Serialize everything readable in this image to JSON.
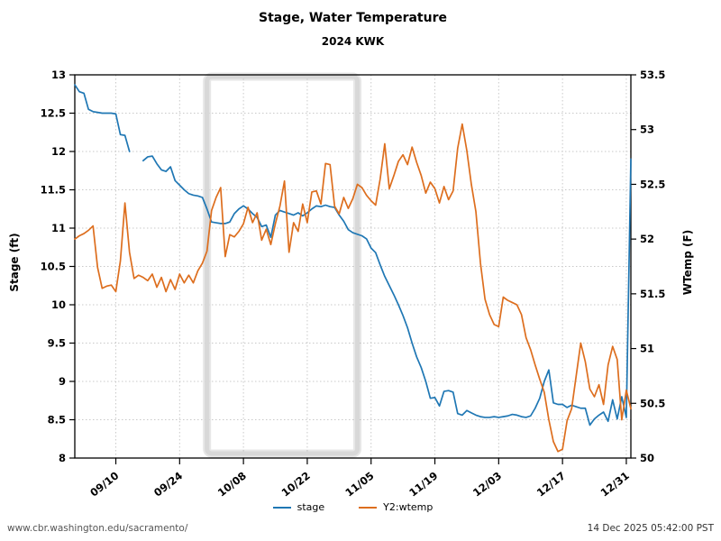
{
  "header": {
    "title": "Stage, Water Temperature",
    "subtitle": "2024 KWK"
  },
  "footer": {
    "source_url": "www.cbr.washington.edu/sacramento/",
    "timestamp": "14 Dec 2025 05:42:00 PST"
  },
  "legend": {
    "stage_label": "stage",
    "wtemp_label": "Y2:wtemp"
  },
  "colors": {
    "stage": "#1f77b4",
    "wtemp": "#dd6e1e",
    "grid": "#c9c9c9",
    "axis": "#000000",
    "selection": "#d8d8d8"
  },
  "chart_data": {
    "type": "line",
    "title": "Stage, Water Temperature",
    "subtitle": "2024 KWK",
    "grid": true,
    "legend": {
      "position": "bottom",
      "entries": [
        "stage",
        "Y2:wtemp"
      ]
    },
    "y_left": {
      "label": "Stage (ft)",
      "min": 8,
      "max": 13,
      "tick_step": 0.5
    },
    "y_right": {
      "label": "WTemp (F)",
      "min": 50,
      "max": 53.5,
      "tick_step": 0.5
    },
    "x_tick_labels": [
      "09/10",
      "09/24",
      "10/08",
      "10/22",
      "11/05",
      "11/19",
      "12/03",
      "12/17",
      "12/31"
    ],
    "selection_box": {
      "x_start_date": "09/30",
      "x_end_date": "11/02"
    },
    "dates": [
      "09/01",
      "09/02",
      "09/03",
      "09/04",
      "09/05",
      "09/06",
      "09/07",
      "09/08",
      "09/09",
      "09/10",
      "09/11",
      "09/12",
      "09/13",
      "09/14",
      "09/15",
      "09/16",
      "09/17",
      "09/18",
      "09/19",
      "09/20",
      "09/21",
      "09/22",
      "09/23",
      "09/24",
      "09/25",
      "09/26",
      "09/27",
      "09/28",
      "09/29",
      "09/30",
      "10/01",
      "10/02",
      "10/03",
      "10/04",
      "10/05",
      "10/06",
      "10/07",
      "10/08",
      "10/09",
      "10/10",
      "10/11",
      "10/12",
      "10/13",
      "10/14",
      "10/15",
      "10/16",
      "10/17",
      "10/18",
      "10/19",
      "10/20",
      "10/21",
      "10/22",
      "10/23",
      "10/24",
      "10/25",
      "10/26",
      "10/27",
      "10/28",
      "10/29",
      "10/30",
      "10/31",
      "11/01",
      "11/02",
      "11/03",
      "11/04",
      "11/05",
      "11/06",
      "11/07",
      "11/08",
      "11/09",
      "11/10",
      "11/11",
      "11/12",
      "11/13",
      "11/14",
      "11/15",
      "11/16",
      "11/17",
      "11/18",
      "11/19",
      "11/20",
      "11/21",
      "11/22",
      "11/23",
      "11/24",
      "11/25",
      "11/26",
      "11/27",
      "11/28",
      "11/29",
      "11/30",
      "12/01",
      "12/02",
      "12/03",
      "12/04",
      "12/05",
      "12/06",
      "12/07",
      "12/08",
      "12/09",
      "12/10",
      "12/11",
      "12/12",
      "12/13",
      "12/14",
      "12/15",
      "12/16",
      "12/17",
      "12/18",
      "12/19",
      "12/20",
      "12/21",
      "12/22",
      "12/23",
      "12/24",
      "12/25",
      "12/26",
      "12/27",
      "12/28",
      "12/29",
      "12/30",
      "12/31",
      "01/01"
    ],
    "series": [
      {
        "name": "stage",
        "axis": "left",
        "color": "#1f77b4",
        "values": [
          12.87,
          12.78,
          12.76,
          12.55,
          12.52,
          12.51,
          12.5,
          12.5,
          12.5,
          12.49,
          12.22,
          12.21,
          12.0,
          null,
          null,
          11.88,
          11.93,
          11.94,
          11.84,
          11.76,
          11.74,
          11.8,
          11.62,
          11.56,
          11.5,
          11.45,
          11.43,
          11.42,
          11.4,
          11.25,
          11.08,
          11.07,
          11.06,
          11.06,
          11.08,
          11.19,
          11.25,
          11.29,
          11.25,
          11.19,
          11.14,
          11.02,
          11.04,
          10.88,
          11.17,
          11.23,
          11.21,
          11.19,
          11.17,
          11.2,
          11.16,
          11.2,
          11.25,
          11.29,
          11.28,
          11.3,
          11.28,
          11.27,
          11.17,
          11.09,
          10.98,
          10.94,
          10.92,
          10.9,
          10.86,
          10.74,
          10.68,
          10.52,
          10.37,
          10.25,
          10.13,
          10.0,
          9.86,
          9.7,
          9.5,
          9.32,
          9.18,
          9.0,
          8.78,
          8.79,
          8.68,
          8.87,
          8.88,
          8.86,
          8.58,
          8.56,
          8.62,
          8.59,
          8.56,
          8.54,
          8.53,
          8.53,
          8.54,
          8.53,
          8.54,
          8.55,
          8.57,
          8.56,
          8.54,
          8.53,
          8.55,
          8.65,
          8.78,
          9.0,
          9.15,
          8.72,
          8.7,
          8.7,
          8.66,
          8.69,
          8.67,
          8.65,
          8.65,
          8.43,
          8.51,
          8.56,
          8.6,
          8.48,
          8.76,
          8.51,
          8.8,
          8.53,
          11.9
        ]
      },
      {
        "name": "Y2:wtemp",
        "axis": "right",
        "color": "#dd6e1e",
        "values": [
          52.0,
          52.03,
          52.05,
          52.08,
          52.12,
          51.74,
          51.55,
          51.57,
          51.58,
          51.52,
          51.8,
          52.33,
          51.88,
          51.64,
          51.67,
          51.65,
          51.62,
          51.68,
          51.56,
          51.65,
          51.52,
          51.63,
          51.54,
          51.68,
          51.6,
          51.67,
          51.6,
          51.71,
          51.78,
          51.89,
          52.26,
          52.38,
          52.47,
          51.84,
          52.04,
          52.02,
          52.07,
          52.14,
          52.29,
          52.15,
          52.24,
          51.99,
          52.09,
          51.95,
          52.14,
          52.3,
          52.53,
          51.88,
          52.15,
          52.07,
          52.32,
          52.15,
          52.43,
          52.44,
          52.32,
          52.69,
          52.68,
          52.3,
          52.23,
          52.38,
          52.28,
          52.37,
          52.5,
          52.47,
          52.4,
          52.35,
          52.31,
          52.55,
          52.87,
          52.46,
          52.58,
          52.71,
          52.77,
          52.68,
          52.84,
          52.7,
          52.58,
          52.42,
          52.52,
          52.46,
          52.33,
          52.48,
          52.36,
          52.44,
          52.83,
          53.05,
          52.81,
          52.5,
          52.25,
          51.78,
          51.45,
          51.31,
          51.22,
          51.2,
          51.47,
          51.44,
          51.42,
          51.4,
          51.31,
          51.1,
          50.99,
          50.85,
          50.72,
          50.6,
          50.35,
          50.15,
          50.06,
          50.08,
          50.34,
          50.45,
          50.75,
          51.05,
          50.88,
          50.63,
          50.56,
          50.67,
          50.49,
          50.85,
          51.02,
          50.9,
          50.35,
          50.62,
          50.45
        ]
      }
    ]
  }
}
